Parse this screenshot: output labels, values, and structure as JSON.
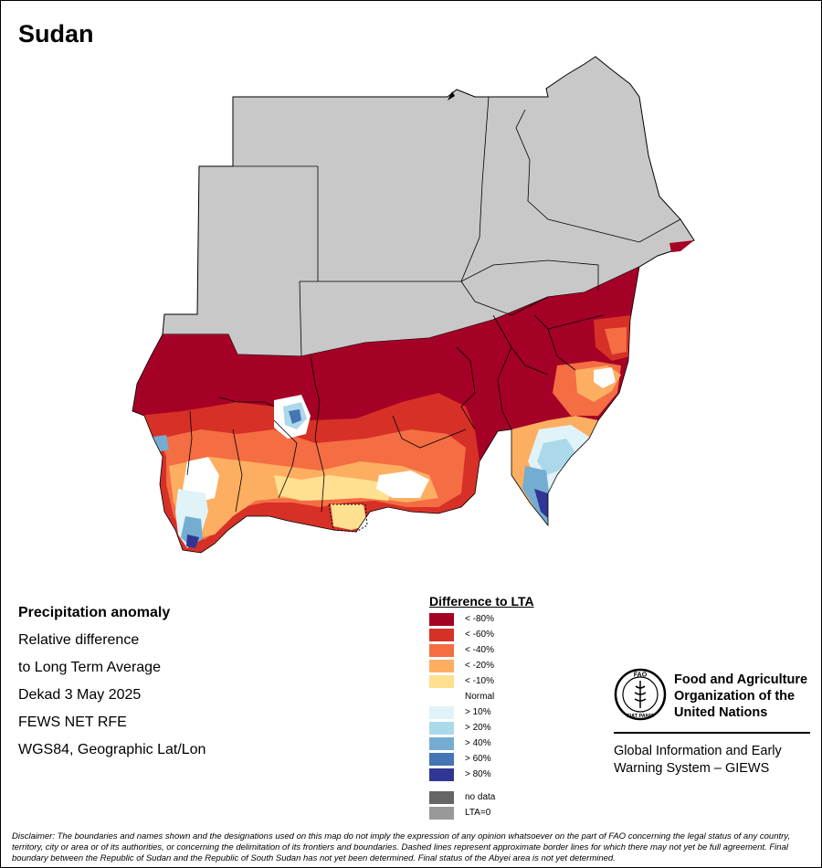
{
  "map": {
    "title": "Sudan",
    "colors": {
      "background_area": "#c8c8c8",
      "lt_minus80": "#a50026",
      "lt_minus60": "#d73027",
      "lt_minus40": "#f46d43",
      "lt_minus20": "#fdae61",
      "lt_minus10": "#fee090",
      "normal": "#ffffff",
      "gt_10": "#e0f3f8",
      "gt_20": "#abd9e9",
      "gt_40": "#74add1",
      "gt_60": "#4575b4",
      "gt_80": "#313695"
    }
  },
  "info": {
    "heading": "Precipitation anomaly",
    "line1": "Relative difference",
    "line2": "to Long Term Average",
    "period": "Dekad 3 May 2025",
    "source": "FEWS NET RFE",
    "projection": "WGS84, Geographic Lat/Lon"
  },
  "legend": {
    "title": "Difference to LTA",
    "items": [
      {
        "label": "< -80%",
        "color": "#a50026"
      },
      {
        "label": "< -60%",
        "color": "#d73027"
      },
      {
        "label": "< -40%",
        "color": "#f46d43"
      },
      {
        "label": "< -20%",
        "color": "#fdae61"
      },
      {
        "label": "< -10%",
        "color": "#fee090"
      },
      {
        "label": "Normal",
        "color": "#ffffff"
      },
      {
        "label": "> 10%",
        "color": "#e0f3f8"
      },
      {
        "label": "> 20%",
        "color": "#abd9e9"
      },
      {
        "label": "> 40%",
        "color": "#74add1"
      },
      {
        "label": "> 60%",
        "color": "#4575b4"
      },
      {
        "label": "> 80%",
        "color": "#313695"
      }
    ],
    "extra": [
      {
        "label": "no data",
        "color": "#666666"
      },
      {
        "label": "LTA=0",
        "color": "#999999"
      }
    ]
  },
  "organization": {
    "name_line1": "Food and Agriculture",
    "name_line2": "Organization of the",
    "name_line3": "United Nations",
    "logo_text": "FAO",
    "logo_motto": "FIAT PANIS",
    "system_line1": "Global Information and Early",
    "system_line2": "Warning System – GIEWS"
  },
  "disclaimer": "Disclaimer: The boundaries and names shown and the designations used on this map do not imply the expression of any opinion whatsoever on the part of FAO concerning the legal status of any country, territory, city or area or of its authorities, or concerning the delimitation of its frontiers and boundaries. Dashed lines represent approximate border lines for which there may not yet be full agreement. Final boundary between the Republic of Sudan and the Republic of South Sudan has not yet been determined. Final status of the Abyei area is not yet determined."
}
